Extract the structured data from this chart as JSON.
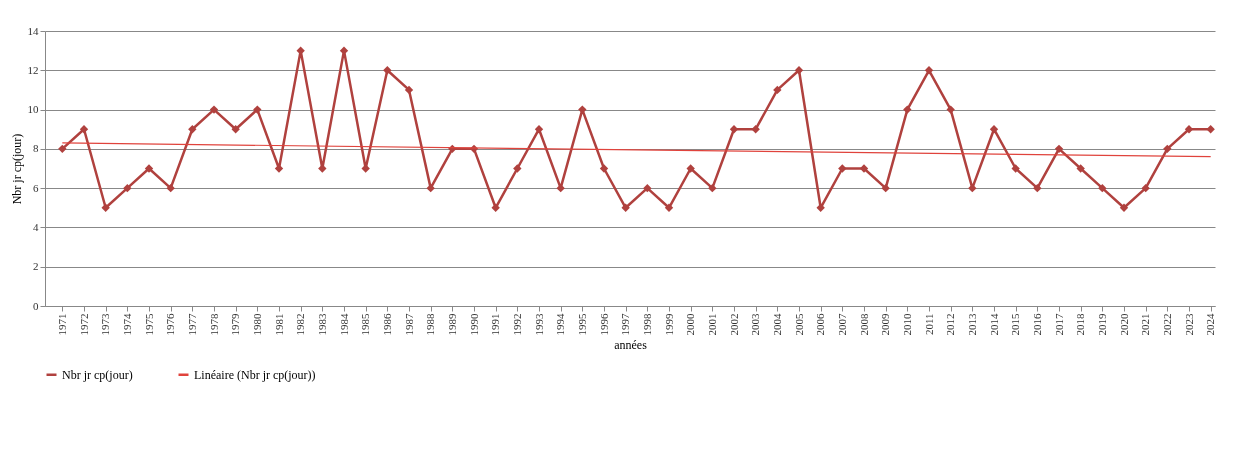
{
  "chart_data": {
    "type": "line",
    "xlabel": "années",
    "ylabel": "Nbr jr cp(jour)",
    "x": [
      1971,
      1972,
      1973,
      1974,
      1975,
      1976,
      1977,
      1978,
      1979,
      1980,
      1981,
      1982,
      1983,
      1984,
      1985,
      1986,
      1987,
      1988,
      1989,
      1990,
      1991,
      1992,
      1993,
      1994,
      1995,
      1996,
      1997,
      1998,
      1999,
      2000,
      2001,
      2002,
      2003,
      2004,
      2005,
      2006,
      2007,
      2008,
      2009,
      2010,
      2011,
      2012,
      2013,
      2014,
      2015,
      2016,
      2017,
      2018,
      2019,
      2020,
      2021,
      2022,
      2023,
      2024
    ],
    "series": [
      {
        "name": "Nbr jr cp(jour)",
        "color": "#b0413e",
        "marker": "diamond",
        "values": [
          8,
          9,
          5,
          6,
          7,
          6,
          9,
          10,
          9,
          10,
          7,
          13,
          7,
          13,
          7,
          12,
          11,
          6,
          8,
          8,
          5,
          7,
          9,
          6,
          10,
          7,
          5,
          6,
          5,
          7,
          6,
          9,
          9,
          11,
          12,
          5,
          7,
          7,
          6,
          10,
          12,
          10,
          6,
          9,
          7,
          6,
          8,
          7,
          6,
          5,
          6,
          8,
          9,
          9
        ]
      },
      {
        "name": "Linéaire (Nbr jr cp(jour))",
        "type": "line",
        "color": "#e0433c",
        "marker": "none",
        "x": [
          1971,
          2024
        ],
        "values": [
          8.3,
          7.6
        ]
      }
    ],
    "xlim": [
      1970.2,
      2024.2
    ],
    "xticks": [
      1971,
      1972,
      1973,
      1974,
      1975,
      1976,
      1977,
      1978,
      1979,
      1980,
      1981,
      1982,
      1983,
      1984,
      1985,
      1986,
      1987,
      1988,
      1989,
      1990,
      1991,
      1992,
      1993,
      1994,
      1995,
      1996,
      1997,
      1998,
      1999,
      2000,
      2001,
      2002,
      2003,
      2004,
      2005,
      2006,
      2007,
      2008,
      2009,
      2010,
      2011,
      2012,
      2013,
      2014,
      2015,
      2016,
      2017,
      2018,
      2019,
      2020,
      2021,
      2022,
      2023,
      2024
    ],
    "ylim": [
      0,
      14
    ],
    "yticks": [
      0,
      2,
      4,
      6,
      8,
      10,
      12,
      14
    ],
    "grid": "y",
    "legend": "bottom"
  }
}
